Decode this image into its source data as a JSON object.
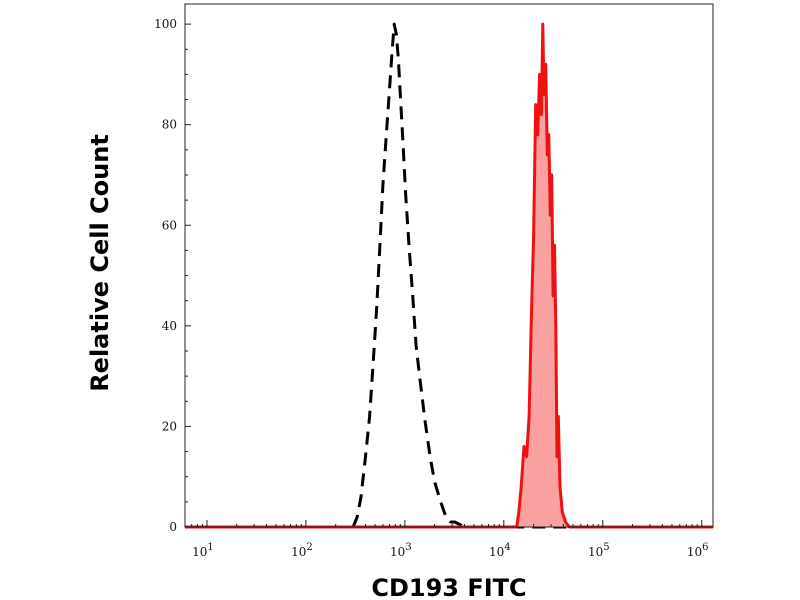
{
  "chart_data": {
    "type": "area",
    "xlabel": "CD193 FITC",
    "ylabel": "Relative Cell Count",
    "xscale": "log",
    "xlim": [
      6,
      1300000
    ],
    "ylim": [
      0,
      104
    ],
    "x_ticks": [
      {
        "value": 10,
        "base": "10",
        "exp": "1"
      },
      {
        "value": 100,
        "base": "10",
        "exp": "2"
      },
      {
        "value": 1000,
        "base": "10",
        "exp": "3"
      },
      {
        "value": 10000,
        "base": "10",
        "exp": "4"
      },
      {
        "value": 100000,
        "base": "10",
        "exp": "5"
      },
      {
        "value": 1000000,
        "base": "10",
        "exp": "6"
      }
    ],
    "y_ticks": [
      0,
      20,
      40,
      60,
      80,
      100
    ],
    "grid": false,
    "series": [
      {
        "style": "dashed",
        "color": "#000000",
        "fill": "none",
        "x": [
          6,
          300,
          330,
          360,
          400,
          440,
          480,
          520,
          560,
          600,
          650,
          700,
          740,
          780,
          820,
          860,
          900,
          960,
          1020,
          1100,
          1200,
          1300,
          1450,
          1600,
          1800,
          2000,
          2300,
          2600,
          2900,
          3200,
          3600,
          4000,
          1300000
        ],
        "y": [
          0,
          0,
          2,
          6,
          14,
          22,
          33,
          44,
          56,
          68,
          78,
          87,
          94,
          100,
          98,
          93,
          86,
          76,
          66,
          56,
          46,
          36,
          28,
          21,
          14,
          9,
          5,
          2,
          1,
          1,
          0.5,
          0,
          0
        ]
      },
      {
        "style": "solid",
        "color": "#ee1111",
        "fill": "#f9a0a0",
        "x": [
          6,
          13500,
          14200,
          15000,
          16000,
          17000,
          18000,
          19000,
          20000,
          21000,
          22000,
          23000,
          24000,
          24800,
          25500,
          26500,
          27500,
          28500,
          29500,
          30500,
          31500,
          32500,
          33500,
          34500,
          35500,
          37000,
          39000,
          42000,
          46000,
          1300000
        ],
        "y": [
          0,
          0,
          3,
          8,
          16,
          14,
          22,
          42,
          58,
          84,
          78,
          90,
          82,
          100,
          86,
          92,
          74,
          78,
          62,
          70,
          46,
          56,
          40,
          14,
          22,
          8,
          3,
          1,
          0,
          0
        ]
      }
    ]
  }
}
